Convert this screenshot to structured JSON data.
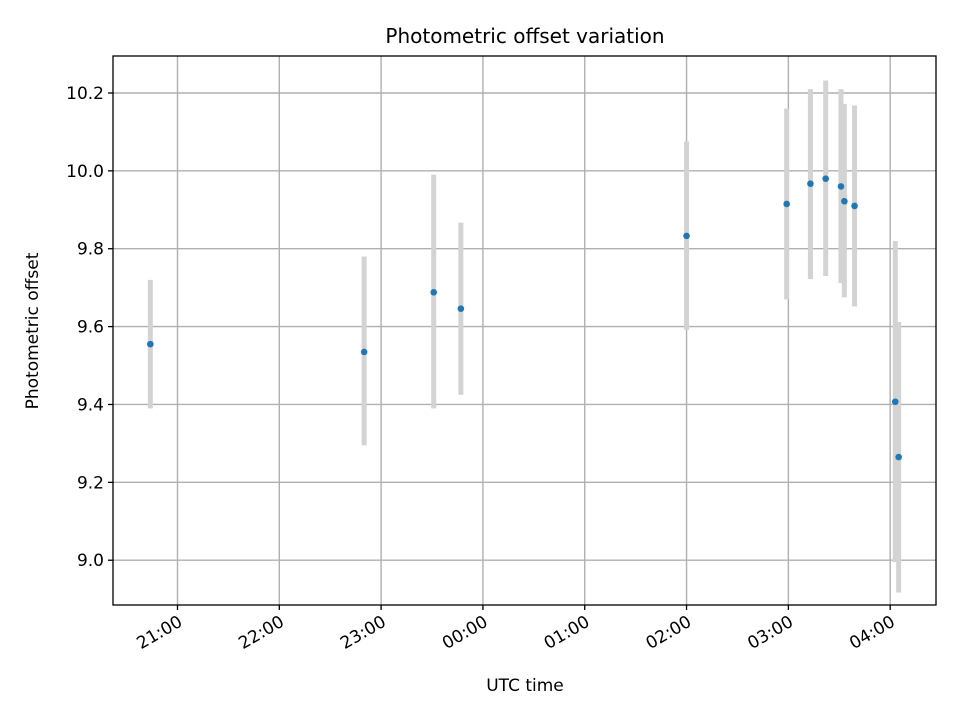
{
  "chart_data": {
    "type": "scatter",
    "title": "Photometric offset variation",
    "xlabel": "UTC time",
    "ylabel": "Photometric offset",
    "x_tick_labels": [
      "21:00",
      "22:00",
      "23:00",
      "00:00",
      "01:00",
      "02:00",
      "03:00",
      "04:00"
    ],
    "y_ticks": [
      9.0,
      9.2,
      9.4,
      9.6,
      9.8,
      10.0,
      10.2
    ],
    "xlim": [
      "20:22",
      "04:27"
    ],
    "ylim": [
      8.885,
      10.295
    ],
    "grid": true,
    "series": [
      {
        "marker_color": "#1f77b4",
        "error_color": "#d3d3d3",
        "points": [
          {
            "time": "20:44",
            "y": 9.555,
            "y_err_low": 9.39,
            "y_err_high": 9.72
          },
          {
            "time": "22:50",
            "y": 9.535,
            "y_err_low": 9.295,
            "y_err_high": 9.78
          },
          {
            "time": "23:31",
            "y": 9.688,
            "y_err_low": 9.39,
            "y_err_high": 9.99
          },
          {
            "time": "23:47",
            "y": 9.646,
            "y_err_low": 9.425,
            "y_err_high": 9.867
          },
          {
            "time": "02:00",
            "y": 9.833,
            "y_err_low": 9.592,
            "y_err_high": 10.075
          },
          {
            "time": "02:59",
            "y": 9.915,
            "y_err_low": 9.67,
            "y_err_high": 10.16
          },
          {
            "time": "03:13",
            "y": 9.967,
            "y_err_low": 9.722,
            "y_err_high": 10.21
          },
          {
            "time": "03:22",
            "y": 9.98,
            "y_err_low": 9.73,
            "y_err_high": 10.232
          },
          {
            "time": "03:31",
            "y": 9.96,
            "y_err_low": 9.712,
            "y_err_high": 10.21
          },
          {
            "time": "03:33",
            "y": 9.922,
            "y_err_low": 9.675,
            "y_err_high": 10.172
          },
          {
            "time": "03:39",
            "y": 9.91,
            "y_err_low": 9.652,
            "y_err_high": 10.168
          },
          {
            "time": "04:03",
            "y": 9.407,
            "y_err_low": 8.995,
            "y_err_high": 9.82
          },
          {
            "time": "04:05",
            "y": 9.265,
            "y_err_low": 8.917,
            "y_err_high": 9.612
          }
        ]
      }
    ]
  }
}
